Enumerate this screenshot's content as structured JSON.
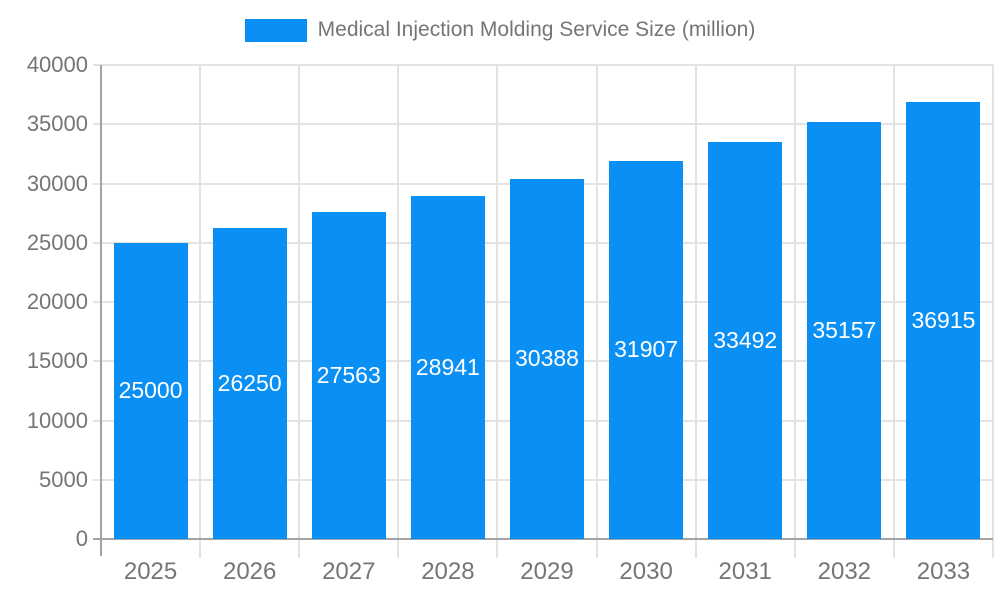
{
  "chart_data": {
    "type": "bar",
    "title": "Medical Injection Molding Service Size (million)",
    "categories": [
      "2025",
      "2026",
      "2027",
      "2028",
      "2029",
      "2030",
      "2031",
      "2032",
      "2033"
    ],
    "values": [
      25000,
      26250,
      27563,
      28941,
      30388,
      31907,
      33492,
      35157,
      36915
    ],
    "xlabel": "",
    "ylabel": "",
    "ylim": [
      0,
      40000
    ],
    "ytick_step": 5000,
    "ytick_labels": [
      "0",
      "5000",
      "10000",
      "15000",
      "20000",
      "25000",
      "30000",
      "35000",
      "40000"
    ],
    "grid": true,
    "legend_position": "top-center",
    "value_labels": "inside-center-white",
    "colors": {
      "bar": "#0A90F5",
      "bar_value_label": "#ffffff",
      "axis_line": "#a3a3a3",
      "gridline": "#e3e3e3",
      "tick_label": "#757575",
      "legend_text": "#757575",
      "background": "#ffffff"
    }
  }
}
